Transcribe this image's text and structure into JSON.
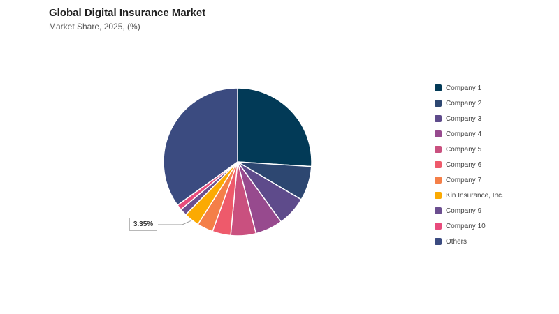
{
  "header": {
    "title": "Global Digital Insurance Market",
    "subtitle": "Market Share, 2025, (%)"
  },
  "chart_data": {
    "type": "pie",
    "title": "Global Digital Insurance Market",
    "subtitle": "Market Share, 2025, (%)",
    "start_angle_deg": 0,
    "direction": "clockwise",
    "legend_position": "right",
    "slices": [
      {
        "label": "Company 1",
        "value": 26.0,
        "color": "#023a57"
      },
      {
        "label": "Company 2",
        "value": 7.5,
        "color": "#2d4771"
      },
      {
        "label": "Company 3",
        "value": 6.5,
        "color": "#5e4b8b"
      },
      {
        "label": "Company 4",
        "value": 6.0,
        "color": "#974a8e"
      },
      {
        "label": "Company 5",
        "value": 5.5,
        "color": "#c9507f"
      },
      {
        "label": "Company 6",
        "value": 4.0,
        "color": "#ee5a6b"
      },
      {
        "label": "Company 7",
        "value": 3.5,
        "color": "#f47f48"
      },
      {
        "label": "Kin Insurance, Inc.",
        "value": 3.35,
        "color": "#fbaa03",
        "callout": "3.35%"
      },
      {
        "label": "Company 9",
        "value": 1.5,
        "color": "#6b4e8f"
      },
      {
        "label": "Company 10",
        "value": 1.2,
        "color": "#e84b7c"
      },
      {
        "label": "Others",
        "value": 34.95,
        "color": "#3b4b80"
      }
    ]
  }
}
